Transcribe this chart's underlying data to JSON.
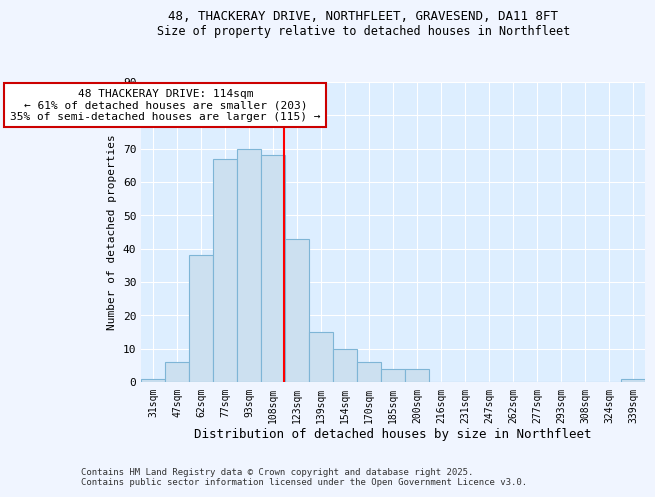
{
  "title_line1": "48, THACKERAY DRIVE, NORTHFLEET, GRAVESEND, DA11 8FT",
  "title_line2": "Size of property relative to detached houses in Northfleet",
  "xlabel": "Distribution of detached houses by size in Northfleet",
  "ylabel": "Number of detached properties",
  "bins": [
    "31sqm",
    "47sqm",
    "62sqm",
    "77sqm",
    "93sqm",
    "108sqm",
    "123sqm",
    "139sqm",
    "154sqm",
    "170sqm",
    "185sqm",
    "200sqm",
    "216sqm",
    "231sqm",
    "247sqm",
    "262sqm",
    "277sqm",
    "293sqm",
    "308sqm",
    "324sqm",
    "339sqm"
  ],
  "values": [
    1,
    6,
    38,
    67,
    70,
    68,
    43,
    15,
    10,
    6,
    4,
    4,
    0,
    0,
    0,
    0,
    0,
    0,
    0,
    0,
    1
  ],
  "bar_color": "#cce0f0",
  "bar_edge_color": "#7eb5d6",
  "red_line_x": 5.45,
  "annotation_text": "48 THACKERAY DRIVE: 114sqm\n← 61% of detached houses are smaller (203)\n35% of semi-detached houses are larger (115) →",
  "annotation_box_color": "#ffffff",
  "annotation_box_edge": "#cc0000",
  "ylim": [
    0,
    90
  ],
  "yticks": [
    0,
    10,
    20,
    30,
    40,
    50,
    60,
    70,
    80,
    90
  ],
  "bg_color": "#ddeeff",
  "grid_color": "#ffffff",
  "fig_bg_color": "#f0f5ff",
  "footer_line1": "Contains HM Land Registry data © Crown copyright and database right 2025.",
  "footer_line2": "Contains public sector information licensed under the Open Government Licence v3.0."
}
